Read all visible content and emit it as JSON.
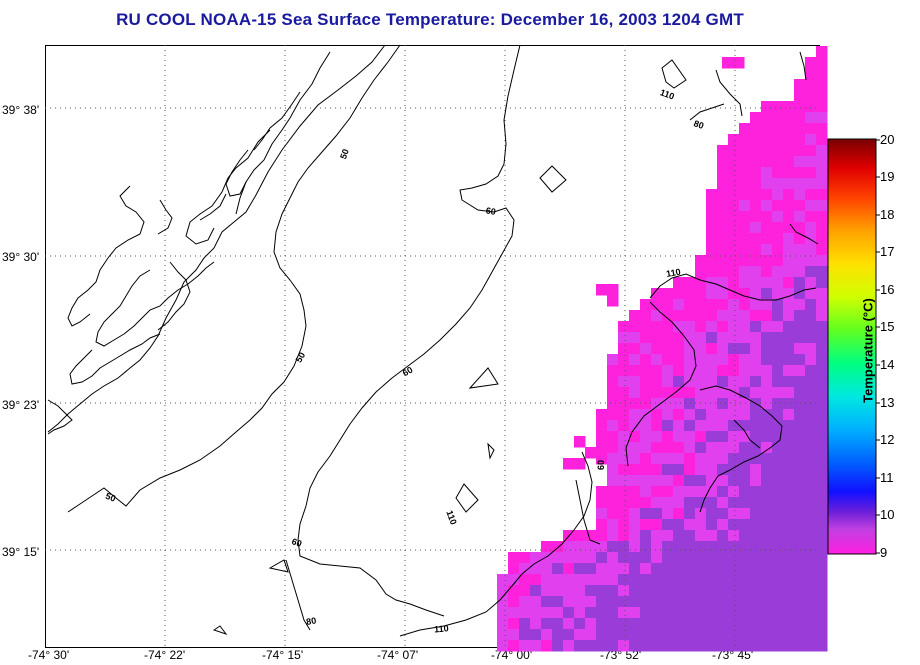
{
  "title": "RU COOL  NOAA-15  Sea Surface Temperature:  December 16, 2003 1204 GMT",
  "latitude_labels": [
    "39° 38'",
    "39° 30'",
    "39° 23'",
    "39° 15'"
  ],
  "longitude_labels": [
    "-74° 30'",
    "-74° 22'",
    "-74° 15'",
    "-74° 07'",
    "-74° 00'",
    "-73° 52'",
    "-73° 45'"
  ],
  "contour_labels": [
    "50",
    "60",
    "110",
    "80",
    "50",
    "60",
    "110",
    "60",
    "110",
    "50",
    "60",
    "80",
    "110"
  ],
  "colorbar": {
    "title": "Temperature (°C)",
    "ticks": [
      "20",
      "19",
      "18",
      "17",
      "16",
      "15",
      "14",
      "13",
      "12",
      "11",
      "10",
      "9"
    ]
  },
  "colors": {
    "title": "#1a1aa0",
    "sst_low": "#ff22dd",
    "sst_mid": "#e040ee",
    "sst_high": "#9a3cd8"
  }
}
